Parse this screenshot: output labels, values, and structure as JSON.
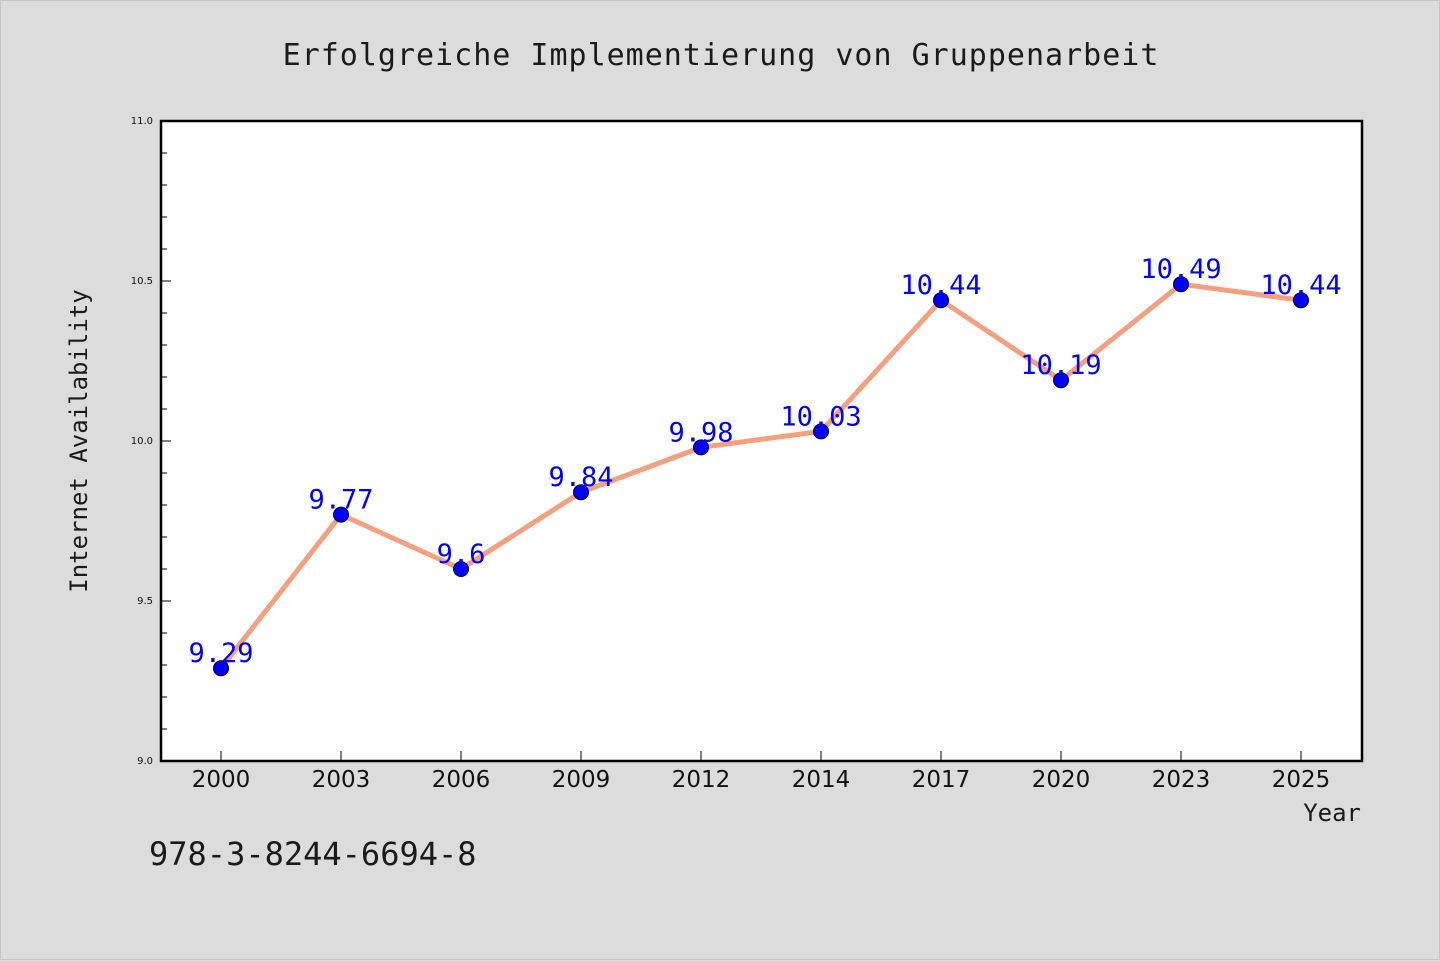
{
  "chart_data": {
    "type": "line",
    "title": "Erfolgreiche Implementierung von Gruppenarbeit",
    "xlabel": "Year",
    "ylabel": "Internet Availability",
    "categories": [
      "2000",
      "2003",
      "2006",
      "2009",
      "2012",
      "2014",
      "2017",
      "2020",
      "2023",
      "2025"
    ],
    "series": [
      {
        "values": [
          9.29,
          9.77,
          9.6,
          9.84,
          9.98,
          10.03,
          10.44,
          10.19,
          10.49,
          10.44
        ],
        "data_labels": [
          "9.29",
          "9.77",
          "9.6",
          "9.84",
          "9.98",
          "10.03",
          "10.44",
          "10.19",
          "10.49",
          "10.44"
        ]
      }
    ],
    "ylim": [
      9.0,
      11.0
    ],
    "y_major_ticks": [
      9.0,
      9.5,
      10.0,
      10.5,
      11.0
    ],
    "y_tick_labels": [
      "9.0",
      "9.5",
      "10.0",
      "10.5",
      "11.0"
    ],
    "y_minor_step": 0.1,
    "grid": false,
    "legend": "none",
    "colors": {
      "line": "#f4a07e",
      "marker": "#0000ff",
      "label": "#0000ff",
      "background": "#dcdcdc",
      "plot_background": "#ffffff"
    }
  },
  "footnote": "978-3-8244-6694-8"
}
